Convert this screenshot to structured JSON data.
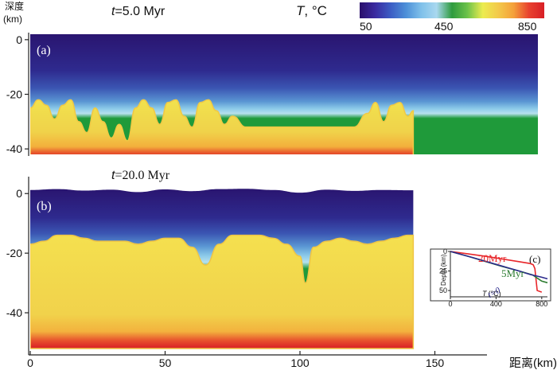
{
  "chart_data": [
    {
      "id": "a",
      "type": "heatmap",
      "panel_label": "(a)",
      "time_prefix": "t",
      "time_value": "=5.0 Myr",
      "ylabel_line1": "深度",
      "ylabel_line2": "(km)",
      "yticks": [
        0,
        -20,
        -40
      ],
      "ylim": [
        -42,
        2
      ],
      "xlim": [
        0,
        142
      ],
      "boundary_profile": {
        "description_values_only": true,
        "x": [
          0,
          3,
          6,
          9,
          12,
          15,
          18,
          21,
          24,
          27,
          30,
          33,
          36,
          39,
          42,
          45,
          48,
          51,
          54,
          57,
          60,
          63,
          66,
          69,
          72,
          75,
          80,
          90,
          100,
          110,
          120,
          125,
          128,
          131,
          134,
          137,
          140,
          142
        ],
        "depth_km": [
          -25,
          -22,
          -24,
          -29,
          -24,
          -22,
          -30,
          -34,
          -25,
          -30,
          -36,
          -31,
          -37,
          -25,
          -22,
          -25,
          -31,
          -23,
          -22,
          -28,
          -32,
          -23,
          -22,
          -26,
          -31,
          -28,
          -32,
          -32,
          -32,
          -32,
          -32,
          -27,
          -23,
          -30,
          -24,
          -23,
          -28,
          -26
        ]
      }
    },
    {
      "id": "b",
      "type": "heatmap",
      "panel_label": "(b)",
      "time_prefix": "t",
      "time_value": "=20.0 Myr",
      "yticks": [
        0,
        -20,
        -40
      ],
      "ylim": [
        -52,
        3
      ],
      "xlim": [
        0,
        142
      ],
      "xticks": [
        0,
        50,
        100,
        150
      ],
      "xlabel": "距离(km)",
      "boundary_profile": {
        "x": [
          0,
          5,
          10,
          15,
          20,
          25,
          30,
          35,
          40,
          45,
          50,
          55,
          60,
          65,
          70,
          75,
          80,
          85,
          90,
          95,
          100,
          102,
          105,
          110,
          115,
          120,
          125,
          130,
          135,
          140,
          142
        ],
        "depth_km": [
          -17,
          -16,
          -14,
          -14,
          -15,
          -16,
          -16,
          -16,
          -17,
          -16,
          -15,
          -15,
          -18,
          -24,
          -17,
          -14,
          -14,
          -14,
          -15,
          -17,
          -21,
          -30,
          -18,
          -16,
          -15,
          -16,
          -17,
          -16,
          -15,
          -14,
          -14
        ]
      },
      "surface_profile": {
        "x": [
          0,
          10,
          20,
          30,
          40,
          50,
          60,
          70,
          80,
          90,
          100,
          110,
          120,
          130,
          142
        ],
        "elev_km": [
          1.2,
          1.5,
          1.0,
          1.3,
          0.5,
          1.4,
          0.8,
          1.5,
          1.6,
          1.2,
          0.3,
          1.3,
          0.9,
          1.2,
          1.1
        ]
      }
    },
    {
      "id": "c",
      "type": "line",
      "panel_label": "(c)",
      "xlabel_prefix": "T",
      "xlabel_unit": "(°C)",
      "ylabel": "Depth (km)",
      "xticks": [
        0,
        400,
        800
      ],
      "yticks": [
        0,
        25,
        50
      ],
      "xlim": [
        0,
        850
      ],
      "ylim": [
        0,
        55
      ],
      "series": [
        {
          "name": "20Myr",
          "color": "#e8262a",
          "x": [
            0,
            150,
            300,
            450,
            600,
            700,
            725,
            740,
            760,
            800
          ],
          "y": [
            0,
            3,
            6,
            9.5,
            13,
            15.5,
            17,
            22,
            50,
            52
          ]
        },
        {
          "name": "5Myr",
          "color": "#2e7d32",
          "x": [
            0,
            150,
            300,
            450,
            600,
            720,
            760,
            800,
            850
          ],
          "y": [
            0,
            6,
            12.5,
            19,
            25,
            30,
            34,
            38,
            40
          ]
        },
        {
          "name": "t=0",
          "color": "#2b2a8c",
          "x": [
            0,
            200,
            400,
            600,
            700,
            800,
            850
          ],
          "y": [
            0,
            8,
            16.5,
            25,
            29.5,
            33,
            35
          ]
        }
      ]
    }
  ],
  "colorbar": {
    "label_prefix": "T",
    "label_unit": ", °C",
    "tick_labels": [
      "50",
      "450",
      "850"
    ],
    "range": [
      50,
      850
    ],
    "stops": [
      "#2a0f6b",
      "#3a2aa0",
      "#3b5cc4",
      "#4c8fd8",
      "#7fc0ea",
      "#a9d8ef",
      "#2e9b3e",
      "#6cc24a",
      "#ecec4f",
      "#f3c94a",
      "#f4a13a",
      "#e8412e",
      "#d81f26"
    ]
  },
  "heat_colors": {
    "cold": "#2c1a79",
    "band1": "#33409e",
    "band2": "#4d81c6",
    "band3": "#8cc6e7",
    "green": "#2e9b3e",
    "yellow": "#f1e04f",
    "orange": "#f2c246",
    "red": "#e32622"
  }
}
